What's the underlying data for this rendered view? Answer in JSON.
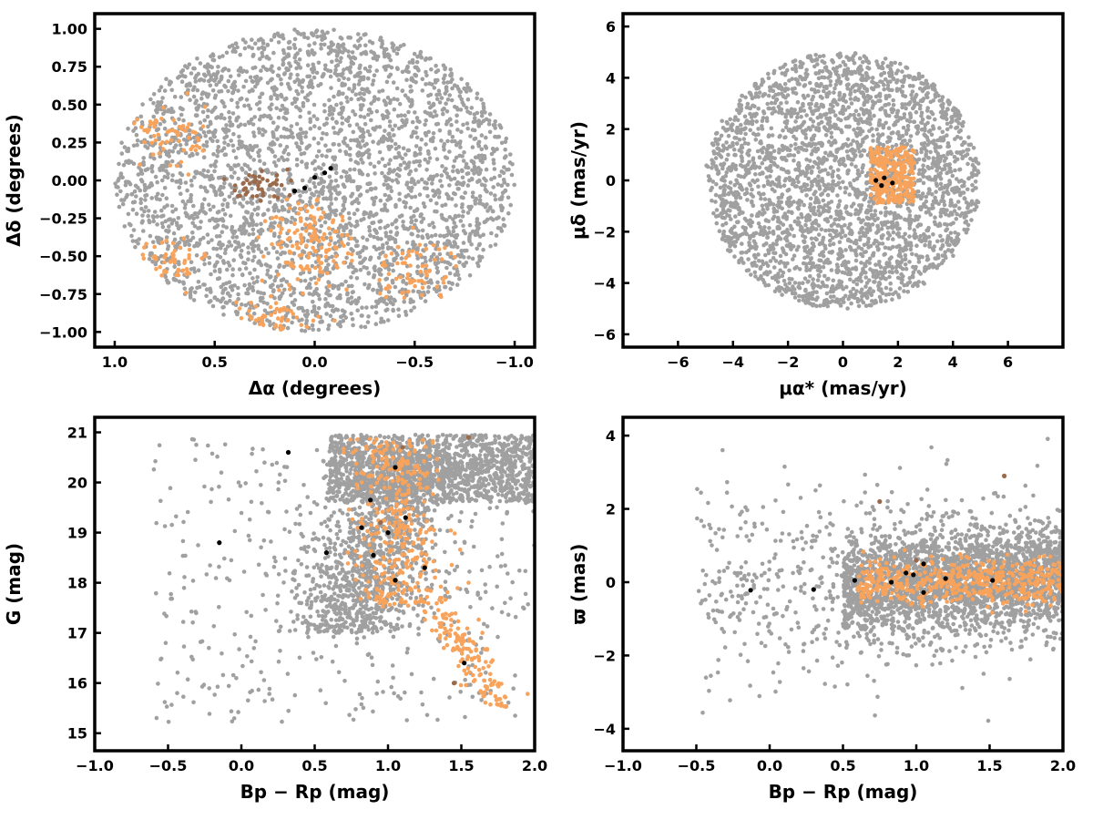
{
  "colors": {
    "field": "#a0a0a0",
    "orange": "#f7a35c",
    "brown": "#9a6a4a",
    "black": "#000000"
  },
  "chart_data": [
    {
      "type": "scatter",
      "xlabel": "Δα (degrees)",
      "ylabel": "Δδ (degrees)",
      "xlim": [
        1.1,
        -1.1
      ],
      "ylim": [
        -1.1,
        1.1
      ],
      "xticks": [
        "1.0",
        "0.5",
        "0.0",
        "−0.5",
        "−1.0"
      ],
      "yticks": [
        "−1.00",
        "−0.75",
        "−0.50",
        "−0.25",
        "0.00",
        "0.25",
        "0.50",
        "0.75",
        "1.00"
      ],
      "series": [
        {
          "color": "#a0a0a0",
          "shape": "disk",
          "center": [
            0.0,
            0.0
          ],
          "radius": 1.0,
          "count": 3200
        },
        {
          "color": "#f7a35c",
          "points": [
            [
              0.0,
              -0.5
            ],
            [
              0.2,
              -0.9
            ],
            [
              -0.5,
              -0.6
            ],
            [
              0.75,
              -0.55
            ],
            [
              0.75,
              0.3
            ],
            [
              0.05,
              -0.3
            ]
          ]
        },
        {
          "color": "#9a6a4a",
          "points": [
            [
              0.33,
              -0.05
            ],
            [
              0.2,
              -0.02
            ],
            [
              0.3,
              0.0
            ]
          ]
        },
        {
          "color": "#000000",
          "points": [
            [
              0.05,
              -0.05
            ],
            [
              -0.05,
              0.05
            ],
            [
              0.1,
              -0.07
            ],
            [
              0.0,
              0.02
            ],
            [
              -0.08,
              0.08
            ]
          ]
        }
      ]
    },
    {
      "type": "scatter",
      "xlabel": "μα* (mas/yr)",
      "ylabel": "μδ (mas/yr)",
      "xlim": [
        -8,
        8
      ],
      "ylim": [
        -6.5,
        6.5
      ],
      "xticks": [
        "−6",
        "−4",
        "−2",
        "0",
        "2",
        "4",
        "6"
      ],
      "yticks": [
        "−6",
        "−4",
        "−2",
        "0",
        "2",
        "4",
        "6"
      ],
      "series": [
        {
          "color": "#a0a0a0",
          "shape": "disk",
          "center": [
            0.0,
            0.0
          ],
          "radius": 5.0,
          "count": 3000
        },
        {
          "color": "#f7a35c",
          "shape": "box",
          "center": [
            1.8,
            0.2
          ],
          "half": [
            0.8,
            1.1
          ],
          "count": 300
        },
        {
          "color": "#000000",
          "points": [
            [
              1.2,
              0.0
            ],
            [
              1.4,
              -0.2
            ],
            [
              1.5,
              0.1
            ],
            [
              1.8,
              -0.1
            ]
          ]
        }
      ]
    },
    {
      "type": "scatter",
      "xlabel": "Bp − Rp (mag)",
      "ylabel": "G (mag)",
      "xlim": [
        -1.0,
        2.0
      ],
      "ylim": [
        14.65,
        21.3
      ],
      "xticks": [
        "−1.0",
        "−0.5",
        "0.0",
        "0.5",
        "1.0",
        "1.5",
        "2.0"
      ],
      "yticks": [
        "15",
        "16",
        "17",
        "18",
        "19",
        "20",
        "21"
      ],
      "series": [
        {
          "color": "#a0a0a0",
          "count": 3000
        },
        {
          "color": "#f7a35c",
          "count": 500
        },
        {
          "color": "#9a6a4a",
          "points": [
            [
              0.95,
              19.2
            ],
            [
              1.1,
              20.7
            ],
            [
              1.55,
              20.9
            ],
            [
              1.45,
              16.0
            ]
          ]
        },
        {
          "color": "#000000",
          "points": [
            [
              -0.15,
              18.8
            ],
            [
              0.32,
              20.6
            ],
            [
              0.58,
              18.6
            ],
            [
              0.82,
              19.1
            ],
            [
              0.88,
              19.65
            ],
            [
              0.9,
              18.55
            ],
            [
              1.05,
              18.05
            ],
            [
              1.05,
              20.3
            ],
            [
              1.25,
              18.3
            ],
            [
              1.52,
              16.4
            ],
            [
              1.0,
              19.0
            ],
            [
              1.12,
              19.3
            ]
          ]
        }
      ]
    },
    {
      "type": "scatter",
      "xlabel": "Bp − Rp (mag)",
      "ylabel": "ϖ (mas)",
      "xlim": [
        -1.0,
        2.0
      ],
      "ylim": [
        -4.6,
        4.5
      ],
      "xticks": [
        "−1.0",
        "−0.5",
        "0.0",
        "0.5",
        "1.0",
        "1.5",
        "2.0"
      ],
      "yticks": [
        "−4",
        "−2",
        "0",
        "2",
        "4"
      ],
      "series": [
        {
          "color": "#a0a0a0",
          "count": 3000
        },
        {
          "color": "#f7a35c",
          "count": 500
        },
        {
          "color": "#9a6a4a",
          "points": [
            [
              0.75,
              2.2
            ],
            [
              1.6,
              2.9
            ],
            [
              1.0,
              0.6
            ]
          ]
        },
        {
          "color": "#000000",
          "points": [
            [
              -0.13,
              -0.22
            ],
            [
              0.3,
              -0.2
            ],
            [
              0.58,
              0.05
            ],
            [
              0.83,
              0.0
            ],
            [
              0.93,
              0.25
            ],
            [
              0.98,
              0.2
            ],
            [
              1.05,
              0.5
            ],
            [
              1.05,
              -0.28
            ],
            [
              1.52,
              0.05
            ],
            [
              1.2,
              0.1
            ]
          ]
        }
      ]
    }
  ]
}
